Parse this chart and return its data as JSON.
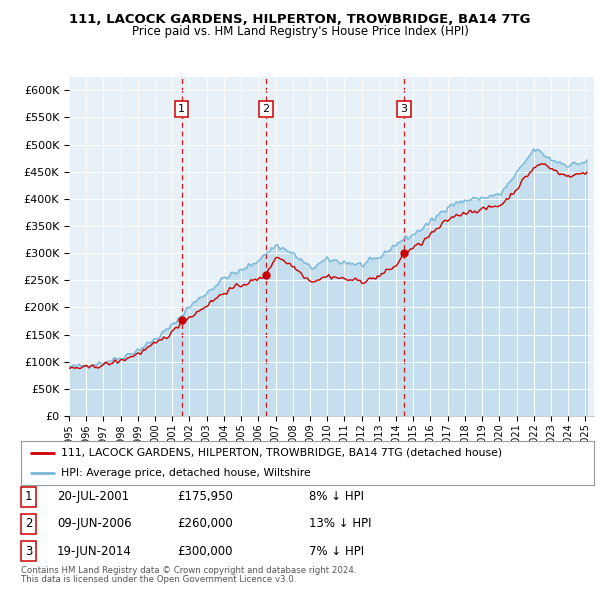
{
  "title1": "111, LACOCK GARDENS, HILPERTON, TROWBRIDGE, BA14 7TG",
  "title2": "Price paid vs. HM Land Registry's House Price Index (HPI)",
  "ylabel_ticks": [
    "£0",
    "£50K",
    "£100K",
    "£150K",
    "£200K",
    "£250K",
    "£300K",
    "£350K",
    "£400K",
    "£450K",
    "£500K",
    "£550K",
    "£600K"
  ],
  "ytick_vals": [
    0,
    50000,
    100000,
    150000,
    200000,
    250000,
    300000,
    350000,
    400000,
    450000,
    500000,
    550000,
    600000
  ],
  "xlim_start": 1995.0,
  "xlim_end": 2025.5,
  "ylim_min": 0,
  "ylim_max": 625000,
  "sale_dates": [
    2001.55,
    2006.44,
    2014.46
  ],
  "sale_prices": [
    175950,
    260000,
    300000
  ],
  "sale_labels": [
    "1",
    "2",
    "3"
  ],
  "legend_line1": "111, LACOCK GARDENS, HILPERTON, TROWBRIDGE, BA14 7TG (detached house)",
  "legend_line2": "HPI: Average price, detached house, Wiltshire",
  "table_entries": [
    {
      "num": "1",
      "date": "20-JUL-2001",
      "price": "£175,950",
      "pct": "8% ↓ HPI"
    },
    {
      "num": "2",
      "date": "09-JUN-2006",
      "price": "£260,000",
      "pct": "13% ↓ HPI"
    },
    {
      "num": "3",
      "date": "19-JUN-2014",
      "price": "£300,000",
      "pct": "7% ↓ HPI"
    }
  ],
  "footnote1": "Contains HM Land Registry data © Crown copyright and database right 2024.",
  "footnote2": "This data is licensed under the Open Government Licence v3.0.",
  "hpi_color": "#7ab8d9",
  "sale_line_color": "#cc0000",
  "vline_color": "#cc0000",
  "plot_bg": "#e8f0f8",
  "grid_color": "#c8d8e8"
}
